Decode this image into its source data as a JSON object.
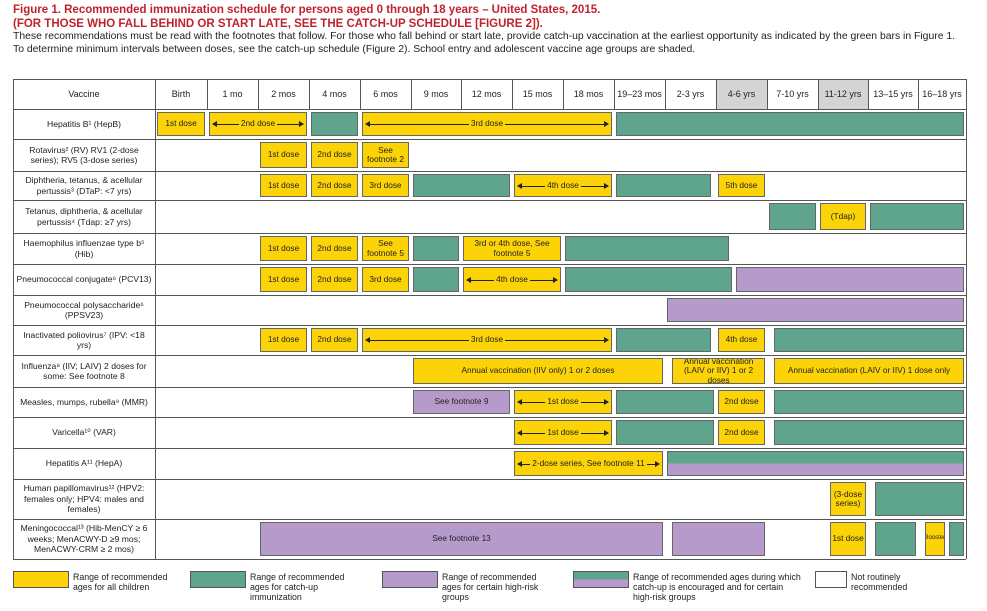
{
  "title": {
    "figure": "Figure 1. Recommended immunization schedule for persons aged 0 through 18 years",
    "suffix": "– United States, 2015.",
    "catchup": "(FOR THOSE WHO FALL BEHIND OR START LATE, SEE THE CATCH-UP SCHEDULE [FIGURE 2]).",
    "note1": "These recommendations must be read with the footnotes that follow. For those who fall behind or start late, provide catch-up vaccination at the earliest opportunity as indicated by the green bars in Figure 1.",
    "note2": "To determine minimum intervals between doses, see the catch-up schedule (Figure 2). School entry and adolescent vaccine age groups are shaded."
  },
  "colors": {
    "yellow": "#fcd306",
    "green": "#5fa58e",
    "purple": "#b69acc",
    "shade": "#d4d4d6"
  },
  "columns": [
    "Vaccine",
    "Birth",
    "1 mo",
    "2 mos",
    "4 mos",
    "6 mos",
    "9 mos",
    "12 mos",
    "15 mos",
    "18 mos",
    "19–23 mos",
    "2-3 yrs",
    "4-6 yrs",
    "7-10 yrs",
    "11-12 yrs",
    "13–15 yrs",
    "16–18 yrs"
  ],
  "rows": [
    {
      "label": "Hepatitis B¹ (HepB)",
      "bars": [
        {
          "c0": 1,
          "c1": 2,
          "t": "y",
          "text": "1st dose"
        },
        {
          "c0": 2,
          "c1": 4,
          "t": "y",
          "text": "2nd dose",
          "arrow": true
        },
        {
          "c0": 4,
          "c1": 5,
          "t": "g",
          "text": ""
        },
        {
          "c0": 5,
          "c1": 10,
          "t": "y",
          "text": "3rd dose",
          "arrow": true
        },
        {
          "c0": 10,
          "c1": 17,
          "t": "g",
          "text": ""
        }
      ]
    },
    {
      "label": "Rotavirus² (RV) RV1 (2-dose series); RV5 (3-dose series)",
      "bars": [
        {
          "c0": 3,
          "c1": 4,
          "t": "y",
          "text": "1st dose"
        },
        {
          "c0": 4,
          "c1": 5,
          "t": "y",
          "text": "2nd dose"
        },
        {
          "c0": 5,
          "c1": 6,
          "t": "y",
          "text": "See footnote 2"
        }
      ]
    },
    {
      "label": "Diphtheria, tetanus, & acellular pertussis³ (DTaP: <7 yrs)",
      "bars": [
        {
          "c0": 3,
          "c1": 4,
          "t": "y",
          "text": "1st dose"
        },
        {
          "c0": 4,
          "c1": 5,
          "t": "y",
          "text": "2nd dose"
        },
        {
          "c0": 5,
          "c1": 6,
          "t": "y",
          "text": "3rd dose"
        },
        {
          "c0": 6,
          "c1": 8,
          "t": "g",
          "text": ""
        },
        {
          "c0": 8,
          "c1": 10,
          "t": "y",
          "text": "4th dose",
          "arrow": true
        },
        {
          "c0": 10,
          "c1": 11.95,
          "t": "g",
          "text": ""
        },
        {
          "c0": 12,
          "c1": 13,
          "t": "y",
          "text": "5th dose"
        }
      ]
    },
    {
      "label": "Tetanus, diphtheria, & acellular pertussis⁴ (Tdap: ≥7 yrs)",
      "bars": [
        {
          "c0": 13,
          "c1": 14,
          "t": "g",
          "text": ""
        },
        {
          "c0": 14,
          "c1": 15,
          "t": "y",
          "text": "(Tdap)"
        },
        {
          "c0": 15,
          "c1": 17,
          "t": "g",
          "text": ""
        }
      ]
    },
    {
      "label": "Haemophilus influenzae type b⁵ (Hib)",
      "italic": true,
      "bars": [
        {
          "c0": 3,
          "c1": 4,
          "t": "y",
          "text": "1st dose"
        },
        {
          "c0": 4,
          "c1": 5,
          "t": "y",
          "text": "2nd dose"
        },
        {
          "c0": 5,
          "c1": 6,
          "t": "y",
          "text": "See footnote 5"
        },
        {
          "c0": 6,
          "c1": 7,
          "t": "g",
          "text": ""
        },
        {
          "c0": 7,
          "c1": 9,
          "t": "y",
          "text": "3rd or 4th dose, See footnote 5",
          "arrow": true
        },
        {
          "c0": 9,
          "c1": 12.3,
          "t": "g",
          "text": ""
        }
      ]
    },
    {
      "label": "Pneumococcal conjugate⁶ (PCV13)",
      "bars": [
        {
          "c0": 3,
          "c1": 4,
          "t": "y",
          "text": "1st dose"
        },
        {
          "c0": 4,
          "c1": 5,
          "t": "y",
          "text": "2nd dose"
        },
        {
          "c0": 5,
          "c1": 6,
          "t": "y",
          "text": "3rd dose"
        },
        {
          "c0": 6,
          "c1": 7,
          "t": "g",
          "text": ""
        },
        {
          "c0": 7,
          "c1": 9,
          "t": "y",
          "text": "4th dose",
          "arrow": true
        },
        {
          "c0": 9,
          "c1": 12.35,
          "t": "g",
          "text": ""
        },
        {
          "c0": 12.35,
          "c1": 17,
          "t": "p",
          "text": ""
        }
      ]
    },
    {
      "label": "Pneumococcal polysaccharide⁶ (PPSV23)",
      "bars": [
        {
          "c0": 11,
          "c1": 17,
          "t": "p",
          "text": ""
        }
      ]
    },
    {
      "label": "Inactivated poliovirus⁷ (IPV: <18 yrs)",
      "bars": [
        {
          "c0": 3,
          "c1": 4,
          "t": "y",
          "text": "1st dose"
        },
        {
          "c0": 4,
          "c1": 5,
          "t": "y",
          "text": "2nd dose"
        },
        {
          "c0": 5,
          "c1": 10,
          "t": "y",
          "text": "3rd dose",
          "arrow": true
        },
        {
          "c0": 10,
          "c1": 11.95,
          "t": "g",
          "text": ""
        },
        {
          "c0": 12,
          "c1": 13,
          "t": "y",
          "text": "4th dose"
        },
        {
          "c0": 13.1,
          "c1": 17,
          "t": "g",
          "text": ""
        }
      ]
    },
    {
      "label": "Influenza⁸ (IIV; LAIV) 2 doses for some: See footnote 8",
      "left": true,
      "bars": [
        {
          "c0": 6,
          "c1": 11,
          "t": "y",
          "text": "Annual vaccination (IIV only) 1 or 2 doses"
        },
        {
          "c0": 11.1,
          "c1": 13,
          "t": "y",
          "text": "Annual vaccination (LAIV or IIV) 1 or 2 doses"
        },
        {
          "c0": 13.1,
          "c1": 17,
          "t": "y",
          "text": "Annual vaccination (LAIV or IIV) 1 dose only"
        }
      ]
    },
    {
      "label": "Measles, mumps, rubella⁹ (MMR)",
      "bars": [
        {
          "c0": 6,
          "c1": 8,
          "t": "p",
          "text": "See footnote 9"
        },
        {
          "c0": 8,
          "c1": 10,
          "t": "y",
          "text": "1st dose",
          "arrow": true
        },
        {
          "c0": 10,
          "c1": 12,
          "t": "g",
          "text": ""
        },
        {
          "c0": 12,
          "c1": 13,
          "t": "y",
          "text": "2nd dose"
        },
        {
          "c0": 13.1,
          "c1": 17,
          "t": "g",
          "text": ""
        }
      ]
    },
    {
      "label": "Varicella¹⁰ (VAR)",
      "bars": [
        {
          "c0": 8,
          "c1": 10,
          "t": "y",
          "text": "1st dose",
          "arrow": true
        },
        {
          "c0": 10,
          "c1": 12,
          "t": "g",
          "text": ""
        },
        {
          "c0": 12,
          "c1": 13,
          "t": "y",
          "text": "2nd dose"
        },
        {
          "c0": 13.1,
          "c1": 17,
          "t": "g",
          "text": ""
        }
      ]
    },
    {
      "label": "Hepatitis A¹¹ (HepA)",
      "bars": [
        {
          "c0": 8,
          "c1": 11,
          "t": "y",
          "text": "2-dose series, See footnote 11",
          "arrow": true
        },
        {
          "c0": 11,
          "c1": 17,
          "t": "gp",
          "text": ""
        }
      ]
    },
    {
      "label": "Human papillomavirus¹² (HPV2: females only; HPV4: males and females)",
      "left": true,
      "bars": [
        {
          "c0": 14.2,
          "c1": 15,
          "t": "y",
          "text": "(3-dose series)"
        },
        {
          "c0": 15.1,
          "c1": 17,
          "t": "g",
          "text": ""
        }
      ]
    },
    {
      "label": "Meningococcal¹³ (Hib-MenCY ≥ 6 weeks; MenACWY-D ≥9 mos; MenACWY-CRM ≥ 2 mos)",
      "bars": [
        {
          "c0": 3,
          "c1": 11,
          "t": "p",
          "text": "See footnote 13"
        },
        {
          "c0": 11.1,
          "c1": 13,
          "t": "p",
          "text": ""
        },
        {
          "c0": 14.2,
          "c1": 15,
          "t": "y",
          "text": "1st dose"
        },
        {
          "c0": 15.1,
          "c1": 16,
          "t": "g",
          "text": ""
        },
        {
          "c0": 16.1,
          "c1": 16.6,
          "t": "y",
          "text": "Booster",
          "small": true
        },
        {
          "c0": 16.6,
          "c1": 17,
          "t": "g",
          "text": ""
        }
      ]
    }
  ],
  "legend": [
    {
      "t": "y",
      "text": "Range of recommended ages for all children"
    },
    {
      "t": "g",
      "text": "Range of recommended ages for catch-up immunization"
    },
    {
      "t": "p",
      "text": "Range of recommended ages for certain high-risk groups"
    },
    {
      "t": "gp",
      "text": "Range of recommended ages during which catch-up is encouraged and for certain high-risk groups"
    },
    {
      "t": "w",
      "text": "Not routinely recommended"
    }
  ]
}
